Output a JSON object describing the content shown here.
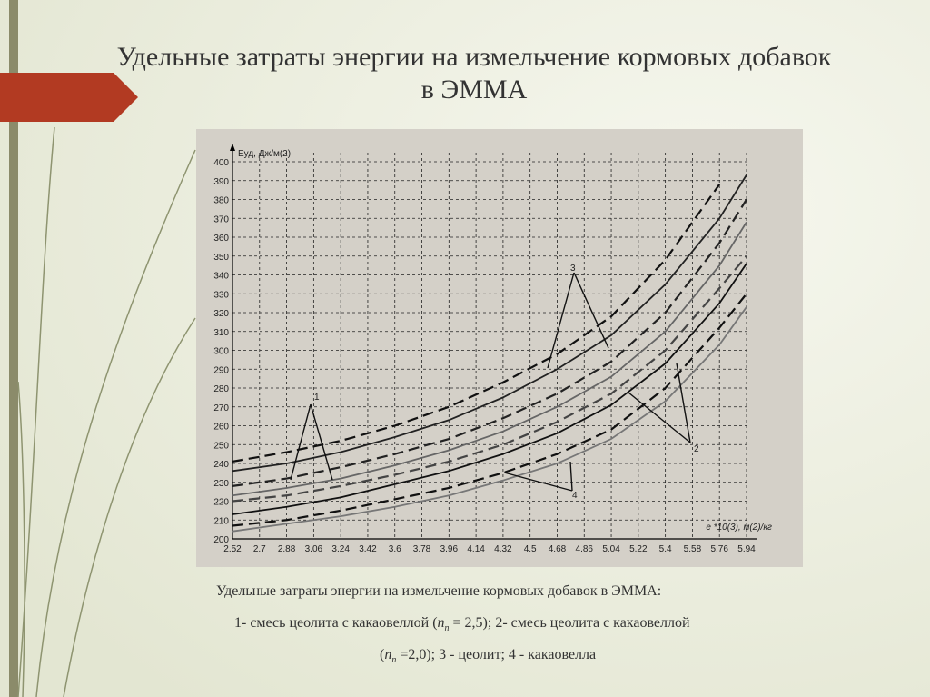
{
  "slide": {
    "title_lines": [
      "Удельные затраты энергии на измельчение кормовых добавок",
      "в ЭММА"
    ],
    "caption": {
      "line1": "Удельные затраты энергии на измельчение кормовых добавок в ЭММА:",
      "line2": [
        "1- смесь цеолита с какаовеллой (",
        "n",
        "п",
        " = 2,5); 2- смесь цеолита с какаовеллой"
      ],
      "line3": [
        "(",
        "n",
        "п",
        " =2,0); 3 - цеолит; 4 - какаовелла"
      ]
    }
  },
  "chart_data": {
    "type": "line",
    "y_label": "Eуд, Дж/м(2)",
    "x_label": "e *10(3), м(2)/кг",
    "xlim": [
      2.52,
      5.94
    ],
    "ylim": [
      200,
      400
    ],
    "xticks": [
      2.52,
      2.7,
      2.88,
      3.06,
      3.24,
      3.42,
      3.6,
      3.78,
      3.96,
      4.14,
      4.32,
      4.5,
      4.68,
      4.86,
      5.04,
      5.22,
      5.4,
      5.58,
      5.76,
      5.94
    ],
    "yticks": [
      200,
      210,
      220,
      230,
      240,
      250,
      260,
      270,
      280,
      290,
      300,
      310,
      320,
      330,
      340,
      350,
      360,
      370,
      380,
      390,
      400
    ],
    "grid": true,
    "x": [
      2.52,
      2.88,
      3.24,
      3.6,
      3.96,
      4.32,
      4.68,
      5.04,
      5.4,
      5.76,
      5.94
    ],
    "series": [
      {
        "color": "#111111",
        "dashed": true,
        "values": [
          241,
          246,
          252,
          260,
          270,
          283,
          298,
          318,
          348,
          388,
          null
        ]
      },
      {
        "color": "#222222",
        "dashed": false,
        "values": [
          236,
          240,
          246,
          254,
          263,
          275,
          290,
          308,
          335,
          370,
          393
        ]
      },
      {
        "color": "#222222",
        "dashed": true,
        "values": [
          228,
          232,
          238,
          245,
          253,
          264,
          277,
          294,
          320,
          357,
          380
        ]
      },
      {
        "color": "#666666",
        "dashed": false,
        "values": [
          223,
          227,
          232,
          239,
          247,
          257,
          270,
          286,
          310,
          345,
          368
        ]
      },
      {
        "color": "#444444",
        "dashed": true,
        "values": [
          220,
          223,
          228,
          234,
          241,
          250,
          262,
          277,
          300,
          333,
          350
        ]
      },
      {
        "color": "#111111",
        "dashed": false,
        "values": [
          213,
          217,
          222,
          229,
          236,
          245,
          256,
          271,
          293,
          325,
          346
        ]
      },
      {
        "color": "#111111",
        "dashed": true,
        "values": [
          207,
          210,
          215,
          221,
          227,
          235,
          245,
          258,
          280,
          312,
          330
        ]
      },
      {
        "color": "#777777",
        "dashed": false,
        "values": [
          204,
          208,
          212,
          217,
          223,
          231,
          240,
          253,
          273,
          303,
          323
        ]
      }
    ],
    "annotations": [
      "1",
      "2",
      "3",
      "4"
    ]
  }
}
